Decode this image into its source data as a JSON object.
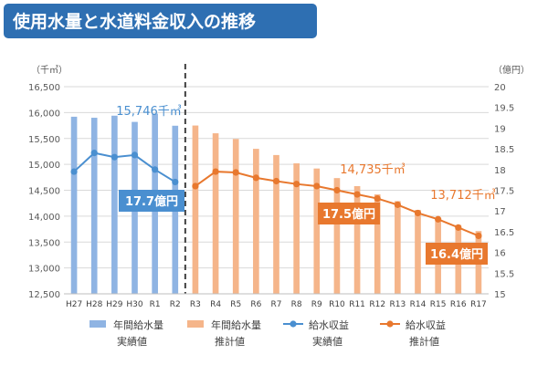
{
  "page_title": "使用水量と水道料金収入の推移",
  "chart_data": {
    "type": "bar",
    "categories": [
      "H27",
      "H28",
      "H29",
      "H30",
      "R1",
      "R2",
      "R3",
      "R4",
      "R5",
      "R6",
      "R7",
      "R8",
      "R9",
      "R10",
      "R11",
      "R12",
      "R13",
      "R14",
      "R15",
      "R16",
      "R17"
    ],
    "left_axis": {
      "unit": "（千㎥）",
      "min": 12500,
      "max": 16500,
      "ticks": [
        "12,500",
        "13,000",
        "13,500",
        "14,000",
        "14,500",
        "15,000",
        "15,500",
        "16,000",
        "16,500"
      ]
    },
    "right_axis": {
      "unit": "（億円）",
      "min": 15,
      "max": 20,
      "ticks": [
        "15",
        "15.5",
        "16",
        "16.5",
        "17",
        "17.5",
        "18",
        "18.5",
        "19",
        "19.5",
        "20"
      ]
    },
    "series": [
      {
        "name": "年間給水量 実績値",
        "type": "bar",
        "axis": "left",
        "color": "#8fb4e3",
        "values": [
          15920,
          15900,
          15940,
          15820,
          15980,
          15746,
          null,
          null,
          null,
          null,
          null,
          null,
          null,
          null,
          null,
          null,
          null,
          null,
          null,
          null,
          null
        ]
      },
      {
        "name": "年間給水量 推計値",
        "type": "bar",
        "axis": "left",
        "color": "#f5b58a",
        "values": [
          null,
          null,
          null,
          null,
          null,
          null,
          15750,
          15600,
          15490,
          15300,
          15180,
          15020,
          14920,
          14735,
          14580,
          14420,
          14290,
          14120,
          13970,
          13830,
          13712
        ]
      },
      {
        "name": "給水収益 実績値",
        "type": "line",
        "axis": "right",
        "color": "#4a8fd0",
        "values": [
          17.95,
          18.4,
          18.3,
          18.35,
          18.0,
          17.7,
          null,
          null,
          null,
          null,
          null,
          null,
          null,
          null,
          null,
          null,
          null,
          null,
          null,
          null,
          null
        ]
      },
      {
        "name": "給水収益 推計値",
        "type": "line",
        "axis": "right",
        "color": "#e8782e",
        "values": [
          null,
          null,
          null,
          null,
          null,
          null,
          17.6,
          17.95,
          17.93,
          17.8,
          17.72,
          17.65,
          17.6,
          17.5,
          17.4,
          17.3,
          17.15,
          16.95,
          16.8,
          16.6,
          16.4
        ]
      }
    ],
    "annotations": [
      {
        "text": "15,746千㎥",
        "style": "plain",
        "color": "#4a8fd0"
      },
      {
        "text": "17.7億円",
        "style": "box",
        "color": "#4a8fd0"
      },
      {
        "text": "14,735千㎥",
        "style": "plain",
        "color": "#e8782e"
      },
      {
        "text": "17.5億円",
        "style": "box",
        "color": "#e8782e"
      },
      {
        "text": "13,712千㎥",
        "style": "plain",
        "color": "#e8782e"
      },
      {
        "text": "16.4億円",
        "style": "box",
        "color": "#e8782e"
      }
    ],
    "legend": [
      {
        "line1": "年間給水量",
        "line2": "実績値",
        "kind": "bar",
        "color": "#8fb4e3"
      },
      {
        "line1": "年間給水量",
        "line2": "推計値",
        "kind": "bar",
        "color": "#f5b58a"
      },
      {
        "line1": "給水収益",
        "line2": "実績値",
        "kind": "line",
        "color": "#4a8fd0"
      },
      {
        "line1": "給水収益",
        "line2": "推計値",
        "kind": "line",
        "color": "#e8782e"
      }
    ],
    "legend_position": "bottom",
    "grid": true
  }
}
